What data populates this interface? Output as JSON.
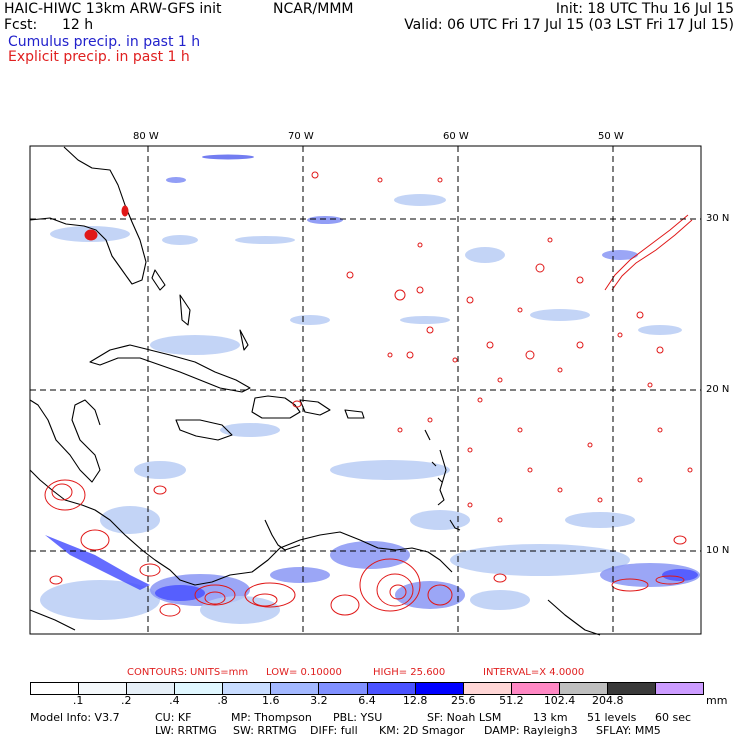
{
  "header": {
    "model_title": "HAIC-HIWC 13km ARW-GFS init",
    "institution": "NCAR/MMM",
    "init": "Init: 18 UTC Thu 16 Jul 15",
    "fcst_label": "Fcst:",
    "fcst_value": "12 h",
    "valid": "Valid: 06 UTC Fri 17 Jul 15 (03 LST Fri 17 Jul 15)",
    "legend_cumulus": "Cumulus precip. in past 1 h",
    "legend_explicit": "Explicit precip. in past 1 h"
  },
  "map": {
    "lon_labels": [
      "80 W",
      "70 W",
      "60 W",
      "50 W"
    ],
    "lat_labels": [
      "30 N",
      "20 N",
      "10 N"
    ],
    "gridline_style": "dashed",
    "colors": {
      "coast": "#000000",
      "cumulus": "#4455ee",
      "explicit": "#e01818"
    }
  },
  "contours": {
    "label": "CONTOURS:",
    "units": "UNITS=mm",
    "low": "LOW= 0.10000",
    "high": "HIGH= 25.600",
    "interval": "INTERVAL=X 4.0000"
  },
  "colorbar": {
    "colors": [
      "#ffffff",
      "#f4f8fb",
      "#e6eff7",
      "#e0f7ff",
      "#c8dcff",
      "#a3b8ff",
      "#8090ff",
      "#4a52ff",
      "#0000ff",
      "#ffd6d6",
      "#ff88c4",
      "#bfbfbf",
      "#3a3a3a",
      "#cc9cff"
    ],
    "ticks": [
      ".1",
      ".2",
      ".4",
      ".8",
      "1.6",
      "3.2",
      "6.4",
      "12.8",
      "25.6",
      "51.2",
      "102.4",
      "204.8"
    ],
    "unit": "mm"
  },
  "model_info": {
    "line1": [
      "Model Info: V3.7",
      "CU: KF",
      "MP: Thompson",
      "PBL: YSU",
      "SF: Noah LSM",
      "13 km",
      "51 levels",
      "60 sec"
    ],
    "line2": [
      "LW: RRTMG",
      "SW: RRTMG",
      "DIFF: full",
      "KM: 2D Smagor",
      "DAMP: Rayleigh3",
      "SFLAY: MM5"
    ]
  }
}
